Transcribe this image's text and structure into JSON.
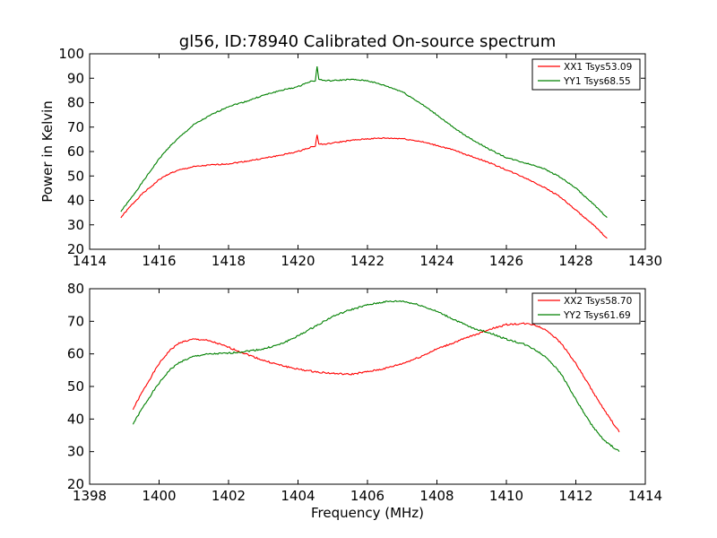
{
  "chart_data": [
    {
      "type": "line",
      "title": "gl56, ID:78940 Calibrated On-source spectrum",
      "xlabel": "",
      "ylabel": "Power in Kelvin",
      "xlim": [
        1414,
        1430
      ],
      "ylim": [
        20,
        100
      ],
      "xticks": [
        1414,
        1416,
        1418,
        1420,
        1422,
        1424,
        1426,
        1428,
        1430
      ],
      "yticks": [
        20,
        30,
        40,
        50,
        60,
        70,
        80,
        90,
        100
      ],
      "legend": "top-right",
      "grid": false,
      "series": [
        {
          "name": "XX1 Tsys53.09",
          "color": "#ff0000",
          "x": [
            1414.9,
            1415.2,
            1415.5,
            1415.8,
            1416.0,
            1416.3,
            1416.6,
            1417.0,
            1417.5,
            1418.0,
            1418.5,
            1419.0,
            1419.5,
            1420.0,
            1420.3,
            1420.5,
            1420.55,
            1420.6,
            1420.8,
            1421.0,
            1421.5,
            1422.0,
            1422.5,
            1423.0,
            1423.5,
            1424.0,
            1424.5,
            1425.0,
            1425.5,
            1426.0,
            1426.5,
            1427.0,
            1427.5,
            1428.0,
            1428.5,
            1428.9
          ],
          "y": [
            33,
            38,
            42.5,
            46,
            48.5,
            51,
            52.5,
            53.8,
            54.5,
            55,
            56,
            57.2,
            58.5,
            60,
            61.5,
            62.3,
            67,
            63,
            63,
            63.5,
            64.5,
            65.2,
            65.5,
            65.3,
            64.2,
            62.5,
            60.5,
            58,
            55.5,
            52.5,
            49.5,
            46,
            42,
            36,
            30,
            24.5
          ]
        },
        {
          "name": "YY1 Tsys68.55",
          "color": "#008000",
          "x": [
            1414.9,
            1415.2,
            1415.5,
            1415.8,
            1416.0,
            1416.3,
            1416.6,
            1417.0,
            1417.5,
            1418.0,
            1418.5,
            1419.0,
            1419.5,
            1420.0,
            1420.3,
            1420.5,
            1420.55,
            1420.6,
            1420.8,
            1421.0,
            1421.5,
            1422.0,
            1422.5,
            1423.0,
            1423.5,
            1424.0,
            1424.5,
            1425.0,
            1425.5,
            1426.0,
            1426.5,
            1427.0,
            1427.5,
            1428.0,
            1428.5,
            1428.9
          ],
          "y": [
            35.5,
            41,
            47,
            53,
            57,
            62,
            66,
            71,
            75,
            78.5,
            80.5,
            83,
            85,
            86.5,
            88.5,
            89,
            95,
            89.5,
            89,
            89,
            89.5,
            89,
            87,
            84.5,
            80,
            75,
            69.5,
            65,
            61,
            57.5,
            55.5,
            53.5,
            50,
            45,
            38.5,
            33
          ]
        }
      ]
    },
    {
      "type": "line",
      "title": "",
      "xlabel": "Frequency (MHz)",
      "ylabel": "",
      "xlim": [
        1398,
        1414
      ],
      "ylim": [
        20,
        80
      ],
      "xticks": [
        1398,
        1400,
        1402,
        1404,
        1406,
        1408,
        1410,
        1412,
        1414
      ],
      "yticks": [
        20,
        30,
        40,
        50,
        60,
        70,
        80
      ],
      "legend": "top-right",
      "grid": false,
      "series": [
        {
          "name": "XX2 Tsys58.70",
          "color": "#ff0000",
          "x": [
            1399.25,
            1399.5,
            1399.8,
            1400.0,
            1400.3,
            1400.6,
            1401.0,
            1401.3,
            1401.6,
            1402.0,
            1402.5,
            1403.0,
            1403.5,
            1404.0,
            1404.5,
            1405.0,
            1405.5,
            1406.0,
            1406.5,
            1407.0,
            1407.5,
            1408.0,
            1408.5,
            1409.0,
            1409.5,
            1410.0,
            1410.5,
            1410.8,
            1411.2,
            1411.6,
            1412.0,
            1412.4,
            1412.8,
            1413.25
          ],
          "y": [
            43,
            48,
            53.5,
            57,
            61,
            63.5,
            64.5,
            64.3,
            63.5,
            62,
            60,
            58,
            56.5,
            55.3,
            54.5,
            54,
            53.7,
            54.5,
            55.5,
            57,
            59,
            61.5,
            63.5,
            65.5,
            67.5,
            69,
            69.3,
            69,
            67,
            63,
            57,
            50,
            43,
            36
          ]
        },
        {
          "name": "YY2 Tsys61.69",
          "color": "#008000",
          "x": [
            1399.25,
            1399.5,
            1399.8,
            1400.0,
            1400.3,
            1400.6,
            1401.0,
            1401.3,
            1401.6,
            1402.0,
            1402.5,
            1403.0,
            1403.5,
            1404.0,
            1404.5,
            1405.0,
            1405.5,
            1406.0,
            1406.5,
            1407.0,
            1407.5,
            1408.0,
            1408.5,
            1409.0,
            1409.5,
            1410.0,
            1410.5,
            1410.8,
            1411.2,
            1411.6,
            1412.0,
            1412.4,
            1412.8,
            1413.25
          ],
          "y": [
            38.5,
            43,
            48,
            51,
            55,
            57.5,
            59.2,
            59.8,
            60,
            60.2,
            60.8,
            61.5,
            63,
            65.5,
            68.5,
            71.5,
            73.5,
            75,
            76,
            76.2,
            75,
            73,
            70.5,
            68,
            66.5,
            64.5,
            63,
            61.5,
            58.5,
            53.5,
            46,
            39,
            33.5,
            30
          ]
        }
      ]
    }
  ]
}
